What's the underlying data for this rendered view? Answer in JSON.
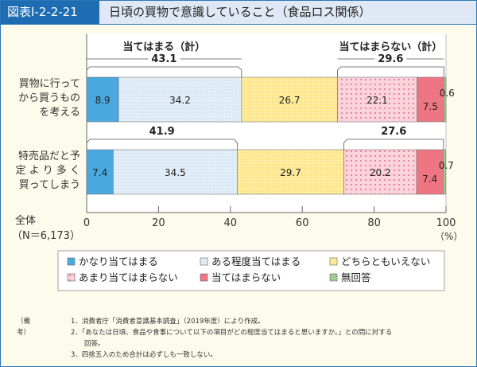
{
  "figure_number": "図表Ⅰ-2-2-21",
  "title": "日頃の買物で意識していること（食品ロス関係）",
  "chart_data": {
    "type": "bar",
    "orientation": "horizontal-stacked-100",
    "categories": [
      "買物に行ってから買うものを考える",
      "特売品だと予定より多く買ってしまう"
    ],
    "category_lines": [
      [
        "買物に行って",
        "から買うもの",
        "を考える"
      ],
      [
        "特売品だと予",
        "定 よ り 多 く",
        "買ってしまう"
      ]
    ],
    "series": [
      {
        "name": "かなり当てはまる",
        "values": [
          8.9,
          7.4
        ],
        "color": "#4aa8e0",
        "pattern": "solid"
      },
      {
        "name": "ある程度当てはまる",
        "values": [
          34.2,
          34.5
        ],
        "color": "#dbe9f7",
        "pattern": "dots-blue"
      },
      {
        "name": "どちらともいえない",
        "values": [
          26.7,
          29.7
        ],
        "color": "#fde58a",
        "pattern": "grid-yellow"
      },
      {
        "name": "あまり当てはまらない",
        "values": [
          22.1,
          20.2
        ],
        "color": "#fbd3dc",
        "pattern": "dots-pink"
      },
      {
        "name": "当てはまらない",
        "values": [
          7.5,
          7.4
        ],
        "color": "#ee7683",
        "pattern": "solid"
      },
      {
        "name": "無回答",
        "values": [
          0.6,
          0.7
        ],
        "color": "#8cc97a",
        "pattern": "hatch-green"
      }
    ],
    "group_labels": {
      "agree": "当てはまる（計）",
      "disagree": "当てはまらない（計）"
    },
    "group_totals": {
      "agree": [
        43.1,
        41.9
      ],
      "disagree": [
        29.6,
        27.6
      ]
    },
    "xlim": [
      0,
      100
    ],
    "xticks": [
      0,
      20,
      40,
      60,
      80,
      100
    ],
    "xunit": "（%）",
    "sample_label": [
      "全体",
      "（N＝6,173）"
    ],
    "legend_position": "bottom"
  },
  "notes": {
    "label": "（備考）",
    "items": [
      "1．消費者庁「消費者意識基本調査」（2019年度）により作成。",
      "2．「あなたは日頃、食品や食事について以下の項目がどの程度当てはまると思いますか。」との問に対する",
      "　　回答。",
      "3．四捨五入のため合計は必ずしも一致しない。"
    ]
  }
}
